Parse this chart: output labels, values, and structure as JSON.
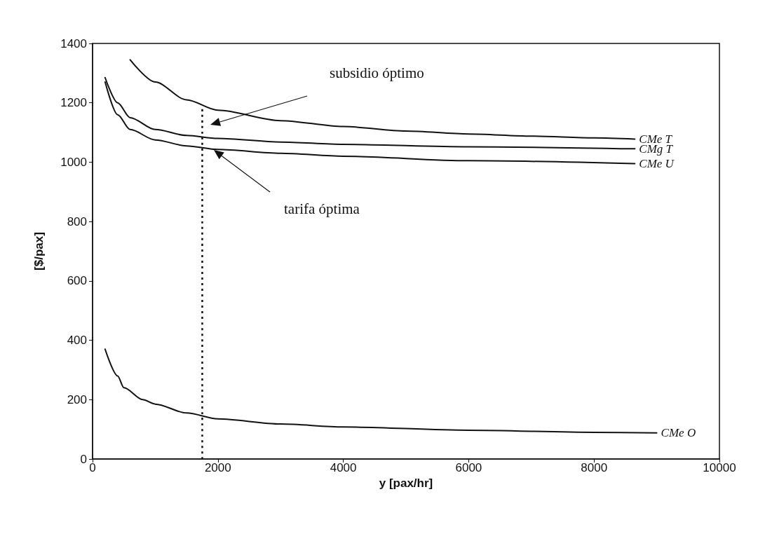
{
  "chart_data": {
    "type": "line",
    "xlabel": "y [pax/hr]",
    "ylabel": "[$/pax]",
    "xlim": [
      0,
      10000
    ],
    "xticks": [
      0,
      2000,
      4000,
      6000,
      8000,
      10000
    ],
    "ylim": [
      0,
      1400
    ],
    "yticks": [
      0,
      200,
      400,
      600,
      800,
      1000,
      1200,
      1400
    ],
    "grid": false,
    "legend": false,
    "marker": "none",
    "line_style": "solid",
    "series": [
      {
        "name": "CMe T",
        "color": "#111111",
        "x": [
          600,
          1000,
          1500,
          2000,
          3000,
          4000,
          5000,
          6000,
          7000,
          8000,
          8650
        ],
        "values": [
          1345,
          1270,
          1210,
          1175,
          1140,
          1120,
          1105,
          1095,
          1088,
          1082,
          1078
        ]
      },
      {
        "name": "CMg T",
        "color": "#111111",
        "x": [
          200,
          400,
          600,
          1000,
          1500,
          2000,
          3000,
          4000,
          6000,
          8650
        ],
        "values": [
          1285,
          1200,
          1150,
          1110,
          1090,
          1080,
          1068,
          1060,
          1052,
          1045
        ]
      },
      {
        "name": "CMe U",
        "color": "#111111",
        "x": [
          200,
          400,
          600,
          1000,
          1500,
          2000,
          3000,
          4000,
          6000,
          8650
        ],
        "values": [
          1270,
          1160,
          1110,
          1075,
          1055,
          1043,
          1030,
          1020,
          1005,
          995
        ]
      },
      {
        "name": "CMe O",
        "color": "#111111",
        "x": [
          200,
          400,
          500,
          800,
          1000,
          1500,
          2000,
          3000,
          4000,
          6000,
          8000,
          9000
        ],
        "values": [
          370,
          280,
          240,
          200,
          185,
          155,
          135,
          118,
          108,
          97,
          90,
          88
        ]
      },
      {
        "color": "#111111",
        "line_style": "dotted",
        "x": [
          1750,
          1750
        ],
        "values": [
          0,
          1185
        ]
      }
    ],
    "annotations": [
      "subsidio óptimo",
      "tarifa óptima"
    ]
  }
}
